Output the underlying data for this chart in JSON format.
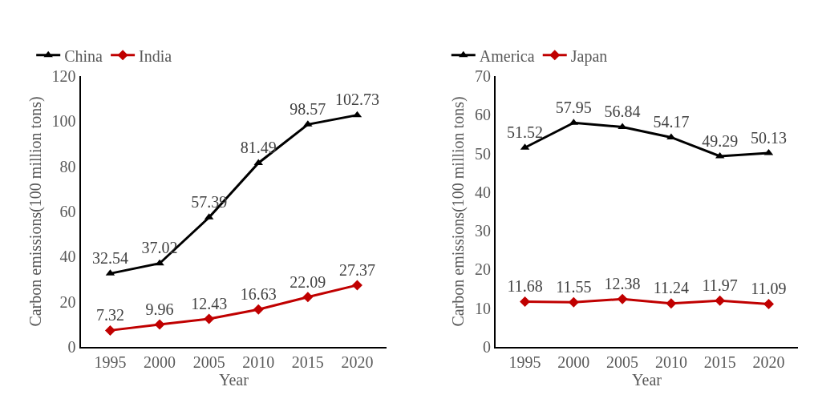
{
  "chart_data": [
    {
      "type": "line",
      "categories": [
        "1995",
        "2000",
        "2005",
        "2010",
        "2015",
        "2020"
      ],
      "xlabel": "Year",
      "ylabel": "Carbon emissions(100 million tons)",
      "ylim": [
        0,
        120
      ],
      "yticks": [
        0,
        20,
        40,
        60,
        80,
        100,
        120
      ],
      "legend": "top left",
      "data_labels": true,
      "series": [
        {
          "name": "China",
          "color": "#000000",
          "marker": "triangle",
          "values": [
            32.54,
            37.02,
            57.39,
            81.49,
            98.57,
            102.73
          ]
        },
        {
          "name": "India",
          "color": "#c00000",
          "marker": "diamond",
          "values": [
            7.32,
            9.96,
            12.43,
            16.63,
            22.09,
            27.37
          ]
        }
      ]
    },
    {
      "type": "line",
      "categories": [
        "1995",
        "2000",
        "2005",
        "2010",
        "2015",
        "2020"
      ],
      "xlabel": "Year",
      "ylabel": "Carbon emissions(100 million tons)",
      "ylim": [
        0,
        70
      ],
      "yticks": [
        0,
        10,
        20,
        30,
        40,
        50,
        60,
        70
      ],
      "legend": "top left",
      "data_labels": true,
      "series": [
        {
          "name": "America",
          "color": "#000000",
          "marker": "triangle",
          "values": [
            51.52,
            57.95,
            56.84,
            54.17,
            49.29,
            50.13
          ]
        },
        {
          "name": "Japan",
          "color": "#c00000",
          "marker": "diamond",
          "values": [
            11.68,
            11.55,
            12.38,
            11.24,
            11.97,
            11.09
          ]
        }
      ]
    }
  ]
}
